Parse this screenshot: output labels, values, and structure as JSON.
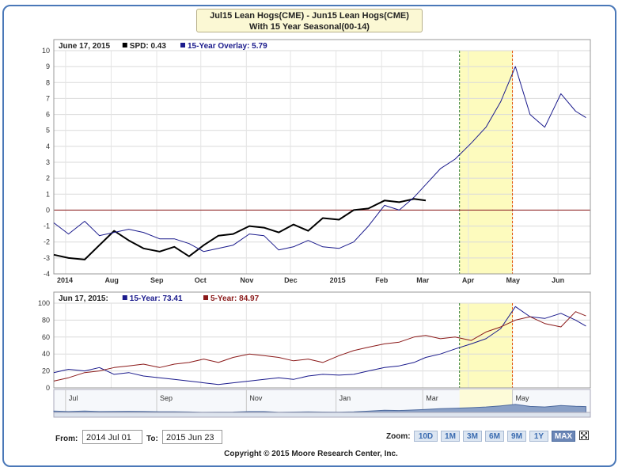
{
  "title": {
    "line1": "Jul15 Lean Hogs(CME) - Jun15 Lean Hogs(CME)",
    "line2": "With 15 Year Seasonal(00-14)"
  },
  "top_panel": {
    "legend_date": "June 17, 2015",
    "legend": [
      {
        "label": "SPD:",
        "value": "0.43",
        "color": "#000000"
      },
      {
        "label": "15-Year Overlay:",
        "value": "5.79",
        "color": "#1a1a8c"
      }
    ]
  },
  "bottom_panel": {
    "legend_date": "Jun 17, 2015:",
    "legend": [
      {
        "label": "15-Year:",
        "value": "73.41",
        "color": "#1a1a8c"
      },
      {
        "label": "5-Year:",
        "value": "84.97",
        "color": "#8b1a1a"
      }
    ]
  },
  "navigator": {
    "labels": [
      "Jul",
      "Sep",
      "Nov",
      "Jan",
      "Mar",
      "May"
    ]
  },
  "controls": {
    "from_label": "From:",
    "from_value": "2014 Jul 01",
    "to_label": "To:",
    "to_value": "2015 Jun 23",
    "zoom_label": "Zoom:",
    "zoom_buttons": [
      "10D",
      "1M",
      "3M",
      "6M",
      "9M",
      "1Y",
      "MAX"
    ],
    "active_zoom": "MAX"
  },
  "copyright": "Copyright © 2015 Moore Research Center, Inc.",
  "colors": {
    "spd": "#000000",
    "overlay15": "#1a1a8c",
    "five_year": "#8b1a1a",
    "highlight": "#fdfbbe",
    "zero_line": "#8b1a1a",
    "frame": "#4a78b8"
  },
  "chart_data": [
    {
      "type": "line",
      "panel": "spread",
      "x_ticks": [
        "2014",
        "Aug",
        "Sep",
        "Oct",
        "Nov",
        "Dec",
        "2015",
        "Feb",
        "Mar",
        "Apr",
        "May",
        "Jun"
      ],
      "ylim": [
        -4,
        10
      ],
      "yticks": [
        -4,
        -3,
        -2,
        -1,
        0,
        1,
        2,
        3,
        4,
        5,
        6,
        7,
        8,
        9,
        10
      ],
      "highlight_window": {
        "start": "Apr",
        "end": "May"
      },
      "series": [
        {
          "name": "SPD",
          "x": [
            "2014-06-23",
            "2014-07-03",
            "2014-07-14",
            "2014-07-24",
            "2014-08-03",
            "2014-08-13",
            "2014-08-23",
            "2014-09-03",
            "2014-09-13",
            "2014-09-23",
            "2014-10-03",
            "2014-10-13",
            "2014-10-23",
            "2014-11-03",
            "2014-11-13",
            "2014-11-23",
            "2014-12-03",
            "2014-12-13",
            "2014-12-23",
            "2015-01-03",
            "2015-01-13",
            "2015-01-23",
            "2015-02-03",
            "2015-02-13",
            "2015-02-23",
            "2015-03-03"
          ],
          "values": [
            -2.8,
            -3.0,
            -3.1,
            -2.2,
            -1.3,
            -1.9,
            -2.4,
            -2.6,
            -2.3,
            -2.9,
            -2.2,
            -1.6,
            -1.5,
            -1.0,
            -1.1,
            -1.4,
            -0.9,
            -1.3,
            -0.5,
            -0.6,
            0.0,
            0.1,
            0.6,
            0.5,
            0.7,
            0.6
          ]
        },
        {
          "name": "15-Year Overlay",
          "x": [
            "2014-06-23",
            "2014-07-03",
            "2014-07-14",
            "2014-07-24",
            "2014-08-03",
            "2014-08-13",
            "2014-08-23",
            "2014-09-03",
            "2014-09-13",
            "2014-09-23",
            "2014-10-03",
            "2014-10-13",
            "2014-10-23",
            "2014-11-03",
            "2014-11-13",
            "2014-11-23",
            "2014-12-03",
            "2014-12-13",
            "2014-12-23",
            "2015-01-03",
            "2015-01-13",
            "2015-01-23",
            "2015-02-03",
            "2015-02-13",
            "2015-02-23",
            "2015-03-03",
            "2015-03-13",
            "2015-03-23",
            "2015-04-03",
            "2015-04-13",
            "2015-04-23",
            "2015-05-03",
            "2015-05-13",
            "2015-05-23",
            "2015-06-03",
            "2015-06-13",
            "2015-06-20"
          ],
          "values": [
            -0.8,
            -1.5,
            -0.7,
            -1.6,
            -1.4,
            -1.2,
            -1.4,
            -1.8,
            -1.8,
            -2.1,
            -2.6,
            -2.4,
            -2.2,
            -1.5,
            -1.6,
            -2.5,
            -2.3,
            -1.9,
            -2.3,
            -2.4,
            -2.0,
            -1.0,
            0.3,
            0.0,
            0.8,
            1.6,
            2.6,
            3.2,
            4.2,
            5.2,
            6.8,
            9.0,
            6.0,
            5.2,
            7.3,
            6.2,
            5.8
          ]
        }
      ]
    },
    {
      "type": "line",
      "panel": "seasonal",
      "x_ticks": [],
      "ylim": [
        0,
        100
      ],
      "yticks": [
        0,
        20,
        40,
        60,
        80,
        100
      ],
      "highlight_window": {
        "start": "Apr",
        "end": "May"
      },
      "series": [
        {
          "name": "15-Year",
          "x": [
            "2014-06-23",
            "2014-07-03",
            "2014-07-14",
            "2014-07-24",
            "2014-08-03",
            "2014-08-13",
            "2014-08-23",
            "2014-09-03",
            "2014-09-13",
            "2014-09-23",
            "2014-10-03",
            "2014-10-13",
            "2014-10-23",
            "2014-11-03",
            "2014-11-13",
            "2014-11-23",
            "2014-12-03",
            "2014-12-13",
            "2014-12-23",
            "2015-01-03",
            "2015-01-13",
            "2015-01-23",
            "2015-02-03",
            "2015-02-13",
            "2015-02-23",
            "2015-03-03",
            "2015-03-13",
            "2015-03-23",
            "2015-04-03",
            "2015-04-13",
            "2015-04-23",
            "2015-05-03",
            "2015-05-13",
            "2015-05-23",
            "2015-06-03",
            "2015-06-13",
            "2015-06-20"
          ],
          "values": [
            18,
            22,
            20,
            24,
            16,
            18,
            14,
            12,
            10,
            8,
            6,
            4,
            6,
            8,
            10,
            12,
            10,
            14,
            16,
            15,
            16,
            20,
            24,
            26,
            30,
            36,
            40,
            46,
            52,
            58,
            70,
            96,
            84,
            82,
            88,
            80,
            73
          ]
        },
        {
          "name": "5-Year",
          "x": [
            "2014-06-23",
            "2014-07-03",
            "2014-07-14",
            "2014-07-24",
            "2014-08-03",
            "2014-08-13",
            "2014-08-23",
            "2014-09-03",
            "2014-09-13",
            "2014-09-23",
            "2014-10-03",
            "2014-10-13",
            "2014-10-23",
            "2014-11-03",
            "2014-11-13",
            "2014-11-23",
            "2014-12-03",
            "2014-12-13",
            "2014-12-23",
            "2015-01-03",
            "2015-01-13",
            "2015-01-23",
            "2015-02-03",
            "2015-02-13",
            "2015-02-23",
            "2015-03-03",
            "2015-03-13",
            "2015-03-23",
            "2015-04-03",
            "2015-04-13",
            "2015-04-23",
            "2015-05-03",
            "2015-05-13",
            "2015-05-23",
            "2015-06-03",
            "2015-06-13",
            "2015-06-20"
          ],
          "values": [
            8,
            12,
            18,
            20,
            24,
            26,
            28,
            24,
            28,
            30,
            34,
            30,
            36,
            40,
            38,
            36,
            32,
            34,
            30,
            38,
            44,
            48,
            52,
            54,
            60,
            62,
            58,
            60,
            56,
            66,
            72,
            80,
            84,
            76,
            72,
            90,
            85
          ]
        }
      ]
    }
  ]
}
